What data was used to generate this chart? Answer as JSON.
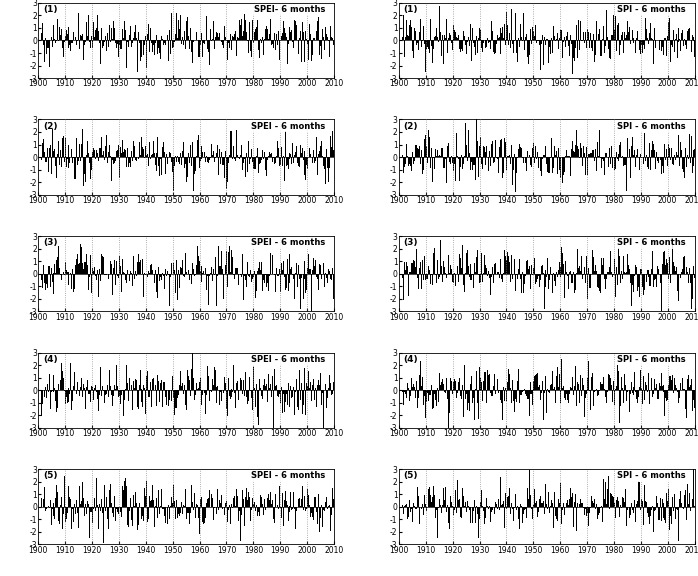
{
  "spei_label": "SPEI- 6 months",
  "spei_label_rest": "SPEI - 6 months",
  "spi_label": "SPI - 6 months",
  "station_labels": [
    "(1)",
    "(2)",
    "(3)",
    "(4)",
    "(5)"
  ],
  "year_start": 1901,
  "year_end": 2010,
  "ylim": [
    -3,
    3
  ],
  "yticks": [
    -3,
    -2,
    -1,
    0,
    1,
    2,
    3
  ],
  "ytick_labels": [
    "-3",
    "-2",
    "-1",
    "0",
    "1",
    "2",
    "3"
  ],
  "xticks": [
    1900,
    1910,
    1920,
    1930,
    1940,
    1950,
    1960,
    1970,
    1980,
    1990,
    2000,
    2010
  ],
  "dashed_vlines": [
    1910,
    1920,
    1930,
    1940,
    1950,
    1960,
    1970,
    1980,
    1990,
    2000
  ],
  "bar_color": "#000000",
  "background_color": "#ffffff",
  "fig_width": 6.98,
  "fig_height": 5.76,
  "label_fontsize": 5.5,
  "title_fontsize": 6.0,
  "station_label_fontsize": 6.5,
  "seed": 42,
  "ar_coeff": 0.55
}
